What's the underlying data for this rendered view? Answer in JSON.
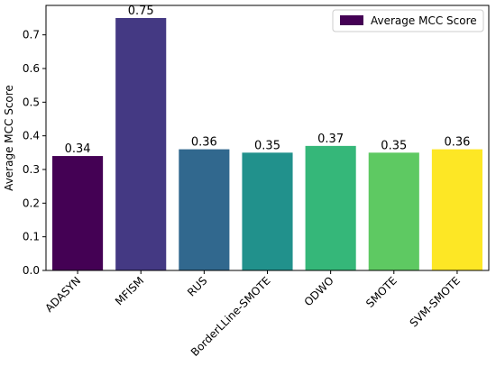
{
  "chart_data": {
    "type": "bar",
    "categories": [
      "ADASYN",
      "MFISM",
      "RUS",
      "BorderLLine-SMOTE",
      "ODWO",
      "SMOTE",
      "SVM-SMOTE"
    ],
    "values": [
      0.34,
      0.75,
      0.36,
      0.35,
      0.37,
      0.35,
      0.36
    ],
    "data_labels": [
      "0.34",
      "0.75",
      "0.36",
      "0.35",
      "0.37",
      "0.35",
      "0.36"
    ],
    "bar_colors": [
      "#440154",
      "#443983",
      "#31688e",
      "#21918c",
      "#35b779",
      "#5ec962",
      "#fde725"
    ],
    "title": "",
    "xlabel": "",
    "ylabel": "Average MCC Score",
    "ylim": [
      0,
      0.7875
    ],
    "yticks": [
      0.0,
      0.1,
      0.2,
      0.3,
      0.4,
      0.5,
      0.6,
      0.7
    ],
    "ytick_labels": [
      "0.0",
      "0.1",
      "0.2",
      "0.3",
      "0.4",
      "0.5",
      "0.6",
      "0.7"
    ],
    "grid": false,
    "legend": {
      "label": "Average MCC Score",
      "position": "top-right",
      "swatch_color": "#440154"
    }
  }
}
